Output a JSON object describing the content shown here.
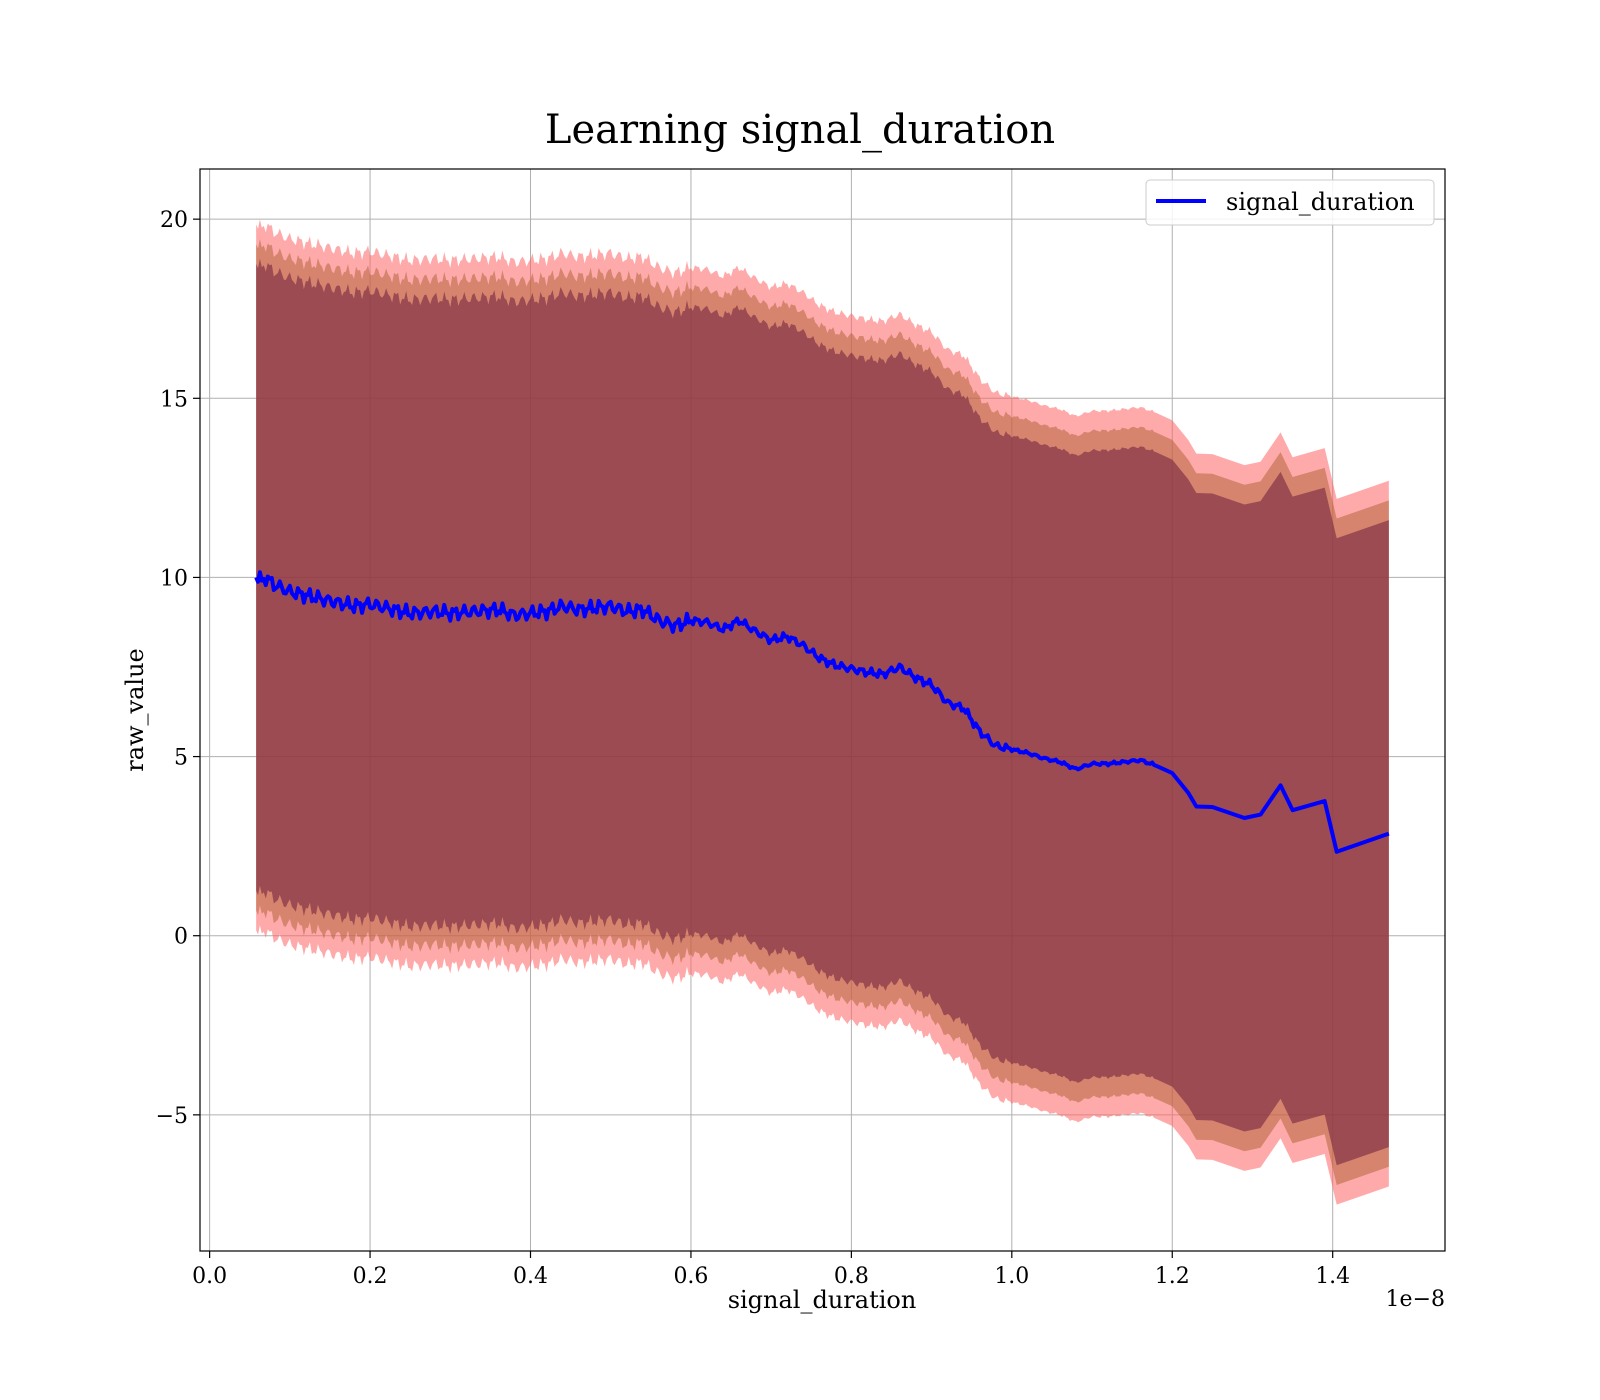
{
  "chart_data": {
    "type": "line",
    "title": "Learning signal_duration",
    "xlabel": "signal_duration",
    "ylabel": "raw_value",
    "x_multiplier_label": "1e−8",
    "xlim": [
      -0.012,
      1.54
    ],
    "ylim": [
      -8.8,
      21.4
    ],
    "x_ticks": [
      0.0,
      0.2,
      0.4,
      0.6,
      0.8,
      1.0,
      1.2,
      1.4
    ],
    "x_tick_labels": [
      "0.0",
      "0.2",
      "0.4",
      "0.6",
      "0.8",
      "1.0",
      "1.2",
      "1.4"
    ],
    "y_ticks": [
      -5,
      0,
      5,
      10,
      15,
      20
    ],
    "y_tick_labels": [
      "−5",
      "0",
      "5",
      "10",
      "15",
      "20"
    ],
    "grid": true,
    "legend_position": "top-right",
    "band_offsets": [
      8.75,
      9.3,
      9.85
    ],
    "band_colors": [
      "#6e1e3c",
      "#b4643c",
      "#ff6464"
    ],
    "band_opacity": 0.55,
    "series": [
      {
        "name": "signal_duration",
        "color": "#0000ff",
        "x": [
          0.058,
          0.065,
          0.07,
          0.08,
          0.09,
          0.1,
          0.12,
          0.15,
          0.18,
          0.2,
          0.22,
          0.25,
          0.28,
          0.3,
          0.33,
          0.36,
          0.38,
          0.4,
          0.42,
          0.44,
          0.46,
          0.48,
          0.5,
          0.52,
          0.54,
          0.56,
          0.58,
          0.6,
          0.62,
          0.64,
          0.66,
          0.68,
          0.7,
          0.72,
          0.74,
          0.76,
          0.78,
          0.8,
          0.82,
          0.84,
          0.86,
          0.88,
          0.9,
          0.92,
          0.94,
          0.96,
          0.98,
          1.0,
          1.02,
          1.04,
          1.06,
          1.08,
          1.1,
          1.12,
          1.14,
          1.16,
          1.18,
          1.2,
          1.22,
          1.23,
          1.25,
          1.29,
          1.31,
          1.335,
          1.35,
          1.39,
          1.405,
          1.47
        ],
        "values": [
          10.0,
          9.9,
          10.0,
          9.8,
          9.7,
          9.6,
          9.5,
          9.35,
          9.2,
          9.25,
          9.15,
          9.0,
          9.05,
          9.0,
          9.05,
          9.1,
          8.95,
          9.0,
          9.05,
          9.2,
          9.1,
          9.15,
          9.2,
          9.05,
          9.1,
          8.8,
          8.65,
          8.8,
          8.75,
          8.55,
          8.8,
          8.5,
          8.25,
          8.35,
          8.1,
          7.75,
          7.55,
          7.45,
          7.35,
          7.3,
          7.5,
          7.2,
          7.0,
          6.5,
          6.35,
          5.7,
          5.3,
          5.2,
          5.1,
          4.95,
          4.85,
          4.65,
          4.8,
          4.8,
          4.85,
          4.9,
          4.75,
          4.5,
          4.0,
          3.65,
          3.6,
          3.3,
          3.35,
          4.2,
          3.55,
          3.75,
          2.3,
          2.85
        ]
      }
    ]
  }
}
